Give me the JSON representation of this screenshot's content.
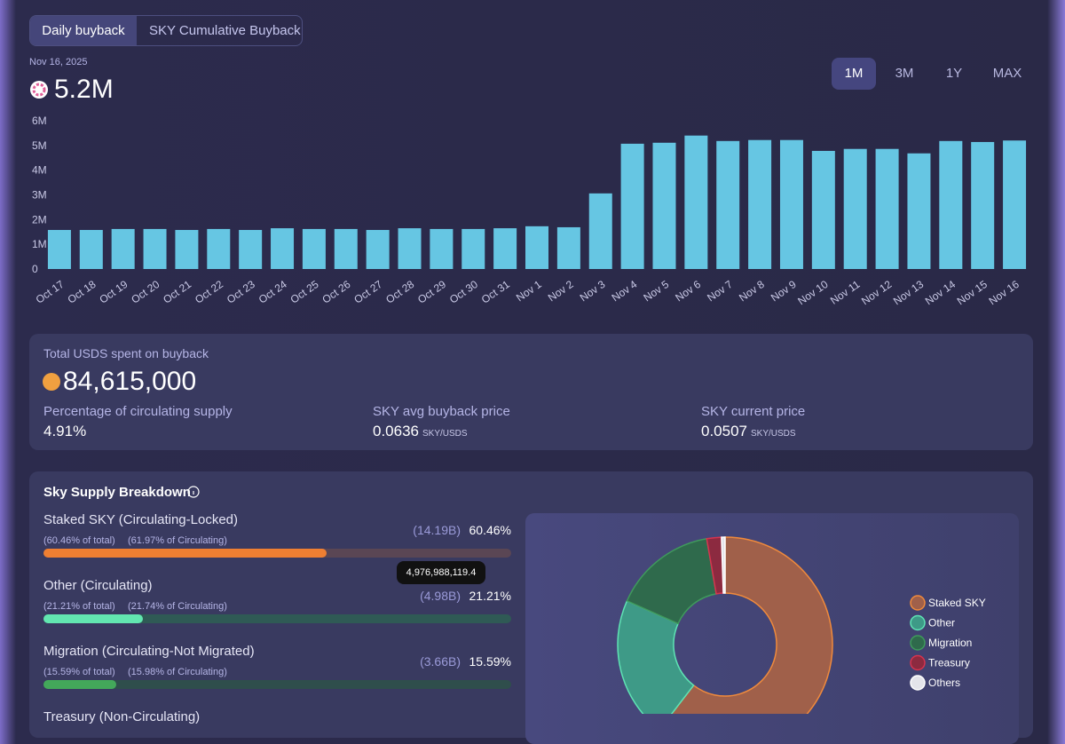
{
  "tabs": [
    "Daily buyback",
    "SKY Cumulative Buyback"
  ],
  "date": "Nov 16, 2025",
  "headline": "5.2M",
  "ranges": [
    "1M",
    "3M",
    "1Y",
    "MAX"
  ],
  "chart_data": [
    {
      "type": "bar",
      "color": "#66c6e3",
      "categories": [
        "Oct 17",
        "Oct 18",
        "Oct 19",
        "Oct 20",
        "Oct 21",
        "Oct 22",
        "Oct 23",
        "Oct 24",
        "Oct 25",
        "Oct 26",
        "Oct 27",
        "Oct 28",
        "Oct 29",
        "Oct 30",
        "Oct 31",
        "Nov 1",
        "Nov 2",
        "Nov 3",
        "Nov 4",
        "Nov 5",
        "Nov 6",
        "Nov 7",
        "Nov 8",
        "Nov 9",
        "Nov 10",
        "Nov 11",
        "Nov 12",
        "Nov 13",
        "Nov 14",
        "Nov 15",
        "Nov 16"
      ],
      "values": [
        1.58,
        1.58,
        1.62,
        1.62,
        1.58,
        1.62,
        1.58,
        1.65,
        1.62,
        1.62,
        1.58,
        1.65,
        1.62,
        1.62,
        1.65,
        1.73,
        1.69,
        3.06,
        5.07,
        5.11,
        5.4,
        5.18,
        5.22,
        5.22,
        4.78,
        4.86,
        4.86,
        4.68,
        5.18,
        5.14,
        5.2
      ],
      "ylim": [
        0,
        6
      ],
      "yticks": [
        0,
        {
          "value": 1,
          "label": "1M"
        },
        {
          "value": 2,
          "label": "2M"
        },
        {
          "value": 3,
          "label": "3M"
        },
        {
          "value": 4,
          "label": "4M"
        },
        {
          "value": 5,
          "label": "5M"
        },
        {
          "value": 6,
          "label": "6M"
        }
      ]
    },
    {
      "type": "pie",
      "donut": true,
      "categories": [
        "Staked SKY",
        "Other",
        "Migration",
        "Treasury",
        "Others"
      ],
      "values": [
        60.46,
        21.21,
        15.59,
        2.2,
        0.54
      ],
      "colors": [
        "#a0604a",
        "#3e9a87",
        "#2f6a4c",
        "#8c2a40",
        "#e4e4ea"
      ],
      "edge_colors": [
        "#f08a3c",
        "#5fe3b4",
        "#3f9a5c",
        "#d6344f",
        "#ffffff"
      ]
    }
  ],
  "summary": {
    "title": "Total USDS spent on buyback",
    "total": "84,615,000",
    "stats": [
      {
        "label": "Percentage of circulating supply",
        "value": "4.91%"
      },
      {
        "label": "SKY avg buyback price",
        "value": "0.0636",
        "unit": "SKY/USDS"
      },
      {
        "label": "SKY current price",
        "value": "0.0507",
        "unit": "SKY/USDS"
      }
    ]
  },
  "breakdown": {
    "title": "Sky Supply Breakdown",
    "tooltip": "4,976,988,119.4",
    "items": [
      {
        "name": "Staked SKY (Circulating-Locked)",
        "amount": "(14.19B)",
        "percent": 60.46,
        "percent_label": "60.46%",
        "of_total": "(60.46% of total)",
        "of_circulating": "(61.97% of Circulating)",
        "color": "#ef7f32",
        "track": "#5a4654"
      },
      {
        "name": "Other (Circulating)",
        "amount": "(4.98B)",
        "percent": 21.21,
        "percent_label": "21.21%",
        "of_total": "(21.21% of total)",
        "of_circulating": "(21.74% of Circulating)",
        "color": "#62e6b0",
        "track": "#2f5a55"
      },
      {
        "name": "Migration (Circulating-Not Migrated)",
        "amount": "(3.66B)",
        "percent": 15.59,
        "percent_label": "15.59%",
        "of_total": "(15.59% of total)",
        "of_circulating": "(15.98% of Circulating)",
        "color": "#43a85a",
        "track": "#2f4e4c"
      },
      {
        "name": "Treasury (Non-Circulating)"
      }
    ]
  }
}
